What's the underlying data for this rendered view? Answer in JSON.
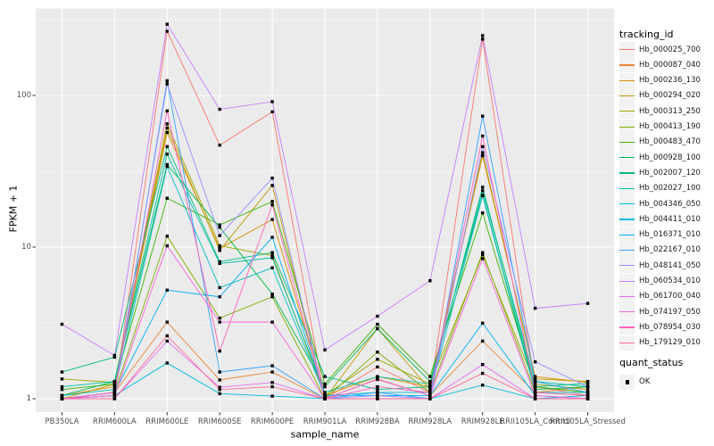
{
  "chart_data": {
    "type": "line",
    "title": "",
    "xlabel": "sample_name",
    "ylabel": "FPKM + 1",
    "yscale": "log10",
    "ylim": [
      1,
      370
    ],
    "y_major_ticks": [
      1,
      10,
      100
    ],
    "y_tick_labels": [
      "1",
      "10",
      "100"
    ],
    "y_minor_ticks": [
      3.1623,
      31.623,
      316.23
    ],
    "grid": true,
    "legend_position": "right",
    "legend_title": "tracking_id",
    "legend2": {
      "title": "quant_status",
      "items": [
        {
          "label": "OK",
          "marker": "black-square"
        }
      ]
    },
    "point_marker": "black-square",
    "panel_color": "#EBEBEB",
    "grid_color": "#FFFFFF",
    "x_categories": [
      "PB350LA",
      "RRIM600LA",
      "RRIM600LE",
      "RRIM600SE",
      "RRIM600PE",
      "RRIM901LA",
      "RRIM928BA",
      "RRIM928LA",
      "RRIM928LE",
      "RRII105LA_Control",
      "RRII105LA_Stressed"
    ],
    "series": [
      {
        "name": "Hb_000025_700",
        "color": "#F8766D",
        "values": [
          1.0,
          1.05,
          265,
          47,
          78,
          1.0,
          1.62,
          1.1,
          235,
          1.2,
          1.05
        ]
      },
      {
        "name": "Hb_000087_040",
        "color": "#EA8331",
        "values": [
          1.0,
          1.1,
          3.2,
          1.33,
          1.5,
          1.0,
          1.35,
          1.05,
          2.4,
          1.1,
          1.2
        ]
      },
      {
        "name": "Hb_000236_130",
        "color": "#D89000",
        "values": [
          1.05,
          1.2,
          57,
          9.8,
          15.2,
          1.05,
          1.4,
          1.2,
          40,
          1.4,
          1.28
        ]
      },
      {
        "name": "Hb_000294_020",
        "color": "#C09B00",
        "values": [
          1.0,
          1.25,
          61,
          9.5,
          25.5,
          1.0,
          2.9,
          1.15,
          42,
          1.35,
          1.3
        ]
      },
      {
        "name": "Hb_000313_250",
        "color": "#A3A500",
        "values": [
          1.35,
          1.28,
          65,
          10.2,
          8.8,
          1.05,
          1.82,
          1.25,
          8.9,
          1.25,
          1.15
        ]
      },
      {
        "name": "Hb_000413_190",
        "color": "#7CAE00",
        "values": [
          1.0,
          1.1,
          11.8,
          3.4,
          4.7,
          1.0,
          2.03,
          1.1,
          9.2,
          1.1,
          1.05
        ]
      },
      {
        "name": "Hb_000483_470",
        "color": "#39B600",
        "values": [
          1.15,
          1.25,
          21,
          14,
          20,
          1.25,
          3.1,
          1.4,
          16.8,
          1.2,
          1.1
        ]
      },
      {
        "name": "Hb_000928_100",
        "color": "#00BB4E",
        "values": [
          1.05,
          1.3,
          35,
          13.5,
          4.9,
          1.2,
          2.9,
          1.3,
          22,
          1.15,
          1.2
        ]
      },
      {
        "name": "Hb_002007_120",
        "color": "#00BF7D",
        "values": [
          1.5,
          1.88,
          46,
          8.0,
          9.2,
          1.4,
          1.15,
          1.2,
          24.8,
          1.2,
          1.26
        ]
      },
      {
        "name": "Hb_002027_100",
        "color": "#00C1A3",
        "values": [
          1.2,
          1.3,
          41,
          7.8,
          8.5,
          1.1,
          1.4,
          1.25,
          23.5,
          1.3,
          1.2
        ]
      },
      {
        "name": "Hb_004346_050",
        "color": "#00BFC4",
        "values": [
          1.05,
          1.15,
          34,
          5.4,
          7.3,
          1.05,
          1.1,
          1.1,
          21.8,
          1.1,
          1.1
        ]
      },
      {
        "name": "Hb_004411_010",
        "color": "#00BAE0",
        "values": [
          1.0,
          1.05,
          1.72,
          1.08,
          1.04,
          1.0,
          1.0,
          1.0,
          1.23,
          1.0,
          1.05
        ]
      },
      {
        "name": "Hb_016371_010",
        "color": "#00B0F6",
        "values": [
          1.0,
          1.1,
          5.2,
          4.7,
          11.6,
          1.05,
          1.05,
          1.05,
          3.15,
          1.05,
          1.0
        ]
      },
      {
        "name": "Hb_022167_010",
        "color": "#35A2FF",
        "values": [
          1.0,
          1.05,
          125,
          1.5,
          1.65,
          1.0,
          1.1,
          1.0,
          73,
          1.3,
          1.1
        ]
      },
      {
        "name": "Hb_048141_050",
        "color": "#9590FF",
        "values": [
          1.0,
          1.1,
          119,
          11.9,
          28.5,
          1.0,
          1.05,
          1.0,
          46,
          1.75,
          1.2
        ]
      },
      {
        "name": "Hb_060534_010",
        "color": "#C77CFF",
        "values": [
          3.1,
          1.93,
          295,
          81,
          91,
          2.1,
          3.5,
          6.0,
          248,
          3.95,
          4.25
        ]
      },
      {
        "name": "Hb_061700_040",
        "color": "#E76BF3",
        "values": [
          1.0,
          1.0,
          2.4,
          1.19,
          1.28,
          1.0,
          1.0,
          1.0,
          1.68,
          1.0,
          1.0
        ]
      },
      {
        "name": "Hb_074197_050",
        "color": "#FA62DB",
        "values": [
          1.0,
          1.05,
          10.2,
          3.2,
          3.2,
          1.0,
          1.34,
          1.05,
          8.4,
          1.05,
          1.0
        ]
      },
      {
        "name": "Hb_078954_030",
        "color": "#FF62BC",
        "values": [
          1.0,
          1.1,
          79,
          2.06,
          19,
          1.0,
          1.2,
          1.1,
          54,
          1.1,
          1.05
        ]
      },
      {
        "name": "Hb_179129_010",
        "color": "#FF6A98",
        "values": [
          1.0,
          1.0,
          2.6,
          1.15,
          1.2,
          1.0,
          1.0,
          1.0,
          1.47,
          1.0,
          1.0
        ]
      }
    ]
  }
}
